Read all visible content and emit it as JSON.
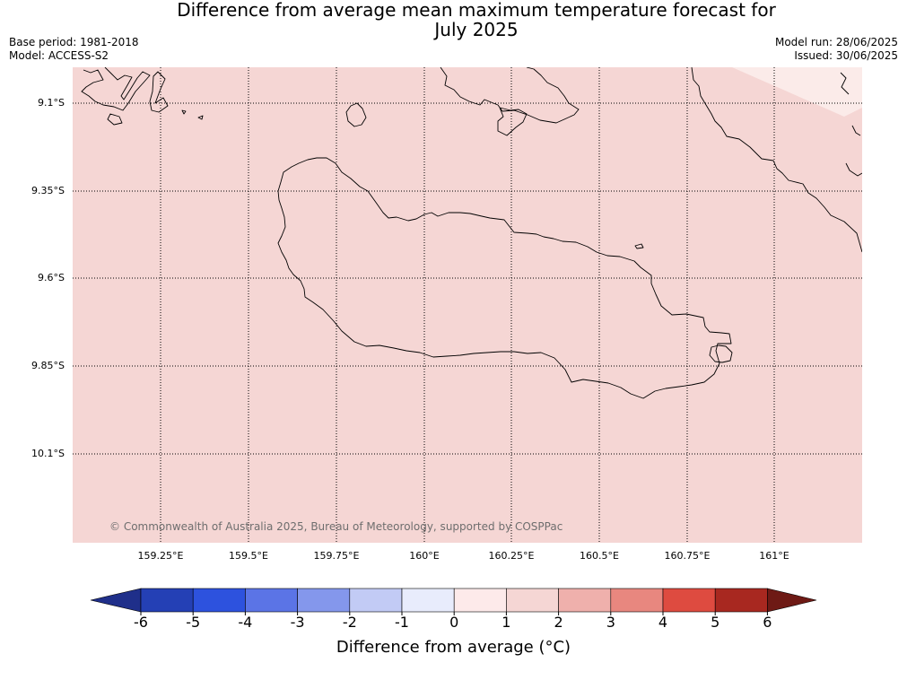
{
  "header": {
    "title_line1": "Difference from average mean maximum temperature forecast for",
    "title_line2": "July 2025",
    "base_period": "Base period: 1981-2018",
    "model": "Model: ACCESS-S2",
    "model_run": "Model run: 28/06/2025",
    "issued": "Issued: 30/06/2025"
  },
  "map": {
    "background_color": "#f5d6d4",
    "light_patch_color": "#fbebe9",
    "coastline_color": "#000000",
    "grid_style": "dotted",
    "lat_labels": [
      "9.1°S",
      "9.35°S",
      "9.6°S",
      "9.85°S",
      "10.1°S"
    ],
    "lon_labels": [
      "159.25°E",
      "159.5°E",
      "159.75°E",
      "160°E",
      "160.25°E",
      "160.5°E",
      "160.75°E",
      "161°E"
    ],
    "copyright": "© Commonwealth of Australia 2025, Bureau of Meteorology, supported by COSPPac"
  },
  "colorbar": {
    "title": "Difference from average (°C)",
    "tick_labels": [
      "-6",
      "-5",
      "-4",
      "-3",
      "-2",
      "-1",
      "0",
      "1",
      "2",
      "3",
      "4",
      "5",
      "6"
    ],
    "colors": [
      "#1f2f8a",
      "#2440b5",
      "#2d52de",
      "#5b74e6",
      "#8497ec",
      "#c2cbf5",
      "#e8ecfc",
      "#fdeaea",
      "#f5d6d4",
      "#efb0ac",
      "#e8877f",
      "#de4b40",
      "#a82820",
      "#6e1a15"
    ]
  }
}
